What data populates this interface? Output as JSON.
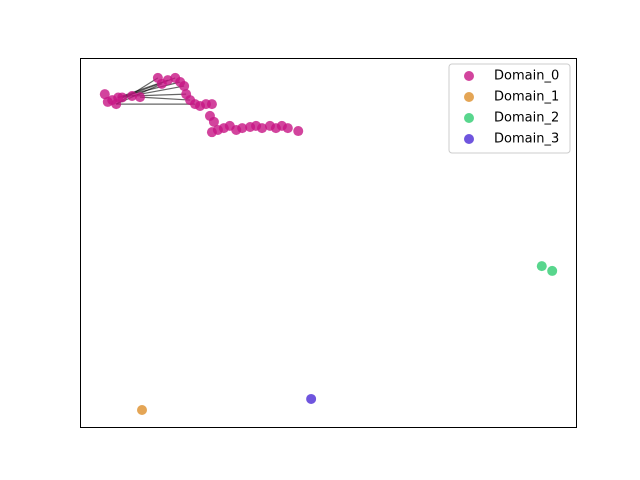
{
  "chart_data": {
    "type": "scatter",
    "xlim": [
      0,
      1
    ],
    "ylim": [
      0,
      1
    ],
    "legend": "upper right",
    "series": [
      {
        "name": "Domain_0",
        "color": "#c71585",
        "x": [
          0.05,
          0.056,
          0.065,
          0.073,
          0.077,
          0.085,
          0.105,
          0.121,
          0.157,
          0.165,
          0.177,
          0.192,
          0.202,
          0.21,
          0.214,
          0.222,
          0.232,
          0.242,
          0.254,
          0.266,
          0.262,
          0.27,
          0.266,
          0.278,
          0.29,
          0.302,
          0.315,
          0.327,
          0.343,
          0.355,
          0.367,
          0.383,
          0.395,
          0.407,
          0.419,
          0.44
        ],
        "y": [
          0.902,
          0.881,
          0.886,
          0.875,
          0.893,
          0.893,
          0.897,
          0.894,
          0.946,
          0.93,
          0.94,
          0.946,
          0.935,
          0.924,
          0.902,
          0.886,
          0.875,
          0.87,
          0.875,
          0.875,
          0.843,
          0.827,
          0.799,
          0.805,
          0.81,
          0.816,
          0.805,
          0.81,
          0.813,
          0.816,
          0.81,
          0.816,
          0.81,
          0.816,
          0.81,
          0.802
        ]
      },
      {
        "name": "Domain_1",
        "color": "#dd8f2a",
        "x": [
          0.125
        ],
        "y": [
          0.046
        ]
      },
      {
        "name": "Domain_2",
        "color": "#2ecc71",
        "x": [
          0.931,
          0.952
        ],
        "y": [
          0.436,
          0.423
        ]
      },
      {
        "name": "Domain_3",
        "color": "#4b2bd6",
        "x": [
          0.466
        ],
        "y": [
          0.076
        ]
      }
    ]
  }
}
